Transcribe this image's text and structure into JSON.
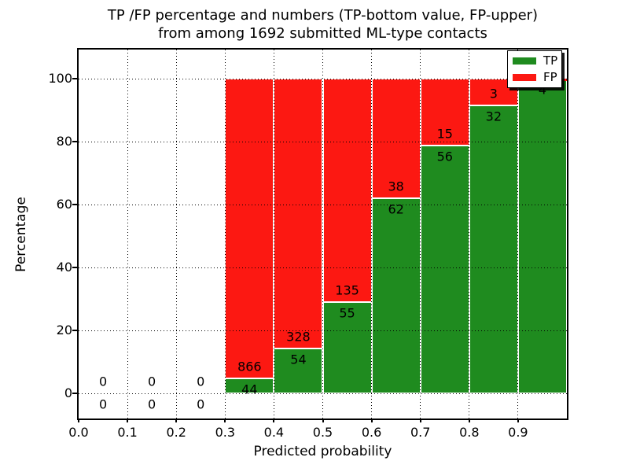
{
  "figure": {
    "title_line1": "TP /FP percentage and numbers (TP-bottom value, FP-upper)",
    "title_line2": "from among 1692 submitted ML-type contacts",
    "xlabel": "Predicted probability",
    "ylabel": "Percentage"
  },
  "legend": {
    "position": "upper right",
    "items": [
      {
        "label": "TP",
        "color": "#1f8b1f"
      },
      {
        "label": "FP",
        "color": "#fc1812"
      }
    ]
  },
  "chart_data": {
    "type": "bar",
    "stacked": true,
    "normalized": "percent_of_bin_total",
    "title": "TP /FP percentage and numbers (TP-bottom value, FP-upper) from among 1692 submitted ML-type contacts",
    "xlabel": "Predicted probability",
    "ylabel": "Percentage",
    "total_contacts": 1692,
    "xlim": [
      0.0,
      1.0
    ],
    "ylim": [
      -8,
      109
    ],
    "x_ticks": [
      "0.0",
      "0.1",
      "0.2",
      "0.3",
      "0.4",
      "0.5",
      "0.6",
      "0.7",
      "0.8",
      "0.9"
    ],
    "y_ticks": [
      0,
      20,
      40,
      60,
      80,
      100
    ],
    "grid": "dotted",
    "legend_position": "upper right",
    "series": [
      {
        "name": "TP",
        "color": "#1f8b1f",
        "stack_position": "bottom"
      },
      {
        "name": "FP",
        "color": "#fc1812",
        "stack_position": "top"
      }
    ],
    "bins": [
      {
        "x0": 0.0,
        "x1": 0.1,
        "tp": 0,
        "fp": 0,
        "tp_pct": 0.0,
        "fp_pct": 0.0
      },
      {
        "x0": 0.1,
        "x1": 0.2,
        "tp": 0,
        "fp": 0,
        "tp_pct": 0.0,
        "fp_pct": 0.0
      },
      {
        "x0": 0.2,
        "x1": 0.3,
        "tp": 0,
        "fp": 0,
        "tp_pct": 0.0,
        "fp_pct": 0.0
      },
      {
        "x0": 0.3,
        "x1": 0.4,
        "tp": 44,
        "fp": 866,
        "tp_pct": 4.8,
        "fp_pct": 95.2
      },
      {
        "x0": 0.4,
        "x1": 0.5,
        "tp": 54,
        "fp": 328,
        "tp_pct": 14.1,
        "fp_pct": 85.9
      },
      {
        "x0": 0.5,
        "x1": 0.6,
        "tp": 55,
        "fp": 135,
        "tp_pct": 28.9,
        "fp_pct": 71.1
      },
      {
        "x0": 0.6,
        "x1": 0.7,
        "tp": 62,
        "fp": 38,
        "tp_pct": 62.0,
        "fp_pct": 38.0
      },
      {
        "x0": 0.7,
        "x1": 0.8,
        "tp": 56,
        "fp": 15,
        "tp_pct": 78.9,
        "fp_pct": 21.1
      },
      {
        "x0": 0.8,
        "x1": 0.9,
        "tp": 32,
        "fp": 3,
        "tp_pct": 91.4,
        "fp_pct": 8.6
      },
      {
        "x0": 0.9,
        "x1": 1.0,
        "tp": 4,
        "fp": 0,
        "tp_pct": 100.0,
        "fp_pct": 0.0
      }
    ]
  }
}
